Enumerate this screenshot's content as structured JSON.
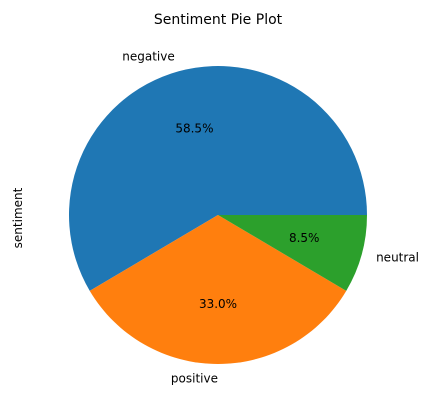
{
  "chart_data": {
    "type": "pie",
    "title": "Sentiment Pie Plot",
    "ylabel": "sentiment",
    "categories": [
      "negative",
      "positive",
      "neutral"
    ],
    "values": [
      58.5,
      33.0,
      8.5
    ],
    "percent_labels": [
      "58.5%",
      "33.0%",
      "8.5%"
    ],
    "colors": [
      "#1f77b4",
      "#ff7f0e",
      "#2ca02c"
    ],
    "start_angle_deg": 0,
    "direction": "counterclockwise",
    "legend": "none"
  }
}
